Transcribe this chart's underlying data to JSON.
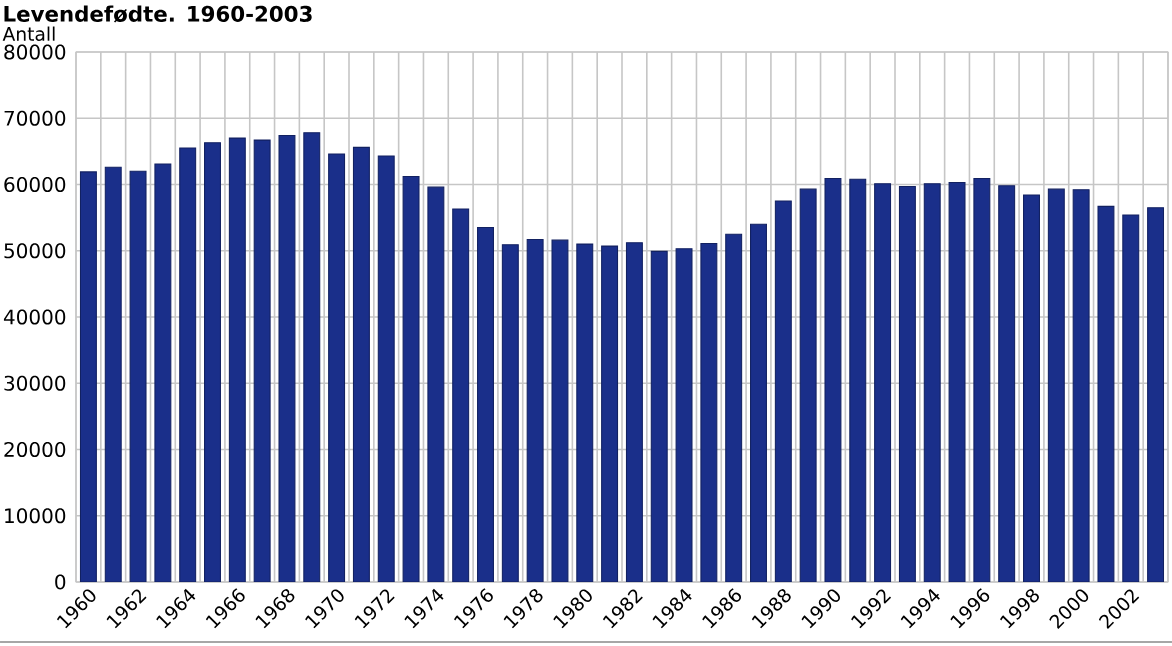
{
  "chart_data": {
    "type": "bar",
    "title": "Levendefødte. 1960-2003",
    "ylabel": "Antall",
    "categories": [
      "1960",
      null,
      "1962",
      null,
      "1964",
      null,
      "1966",
      null,
      "1968",
      null,
      "1970",
      null,
      "1972",
      null,
      "1974",
      null,
      "1976",
      null,
      "1978",
      null,
      "1980",
      null,
      "1982",
      null,
      "1984",
      null,
      "1986",
      null,
      "1988",
      null,
      "1990",
      null,
      "1992",
      null,
      "1994",
      null,
      "1996",
      null,
      "1998",
      null,
      "2000",
      null,
      "2002",
      null
    ],
    "values": [
      61900,
      62600,
      62000,
      63100,
      65500,
      66300,
      67000,
      66700,
      67400,
      67800,
      64600,
      65600,
      64300,
      61200,
      59600,
      56300,
      53500,
      50900,
      51700,
      51600,
      51000,
      50700,
      51200,
      49900,
      50300,
      51100,
      52500,
      54000,
      57500,
      59300,
      60900,
      60800,
      60100,
      59700,
      60100,
      60300,
      60900,
      59800,
      58400,
      59300,
      59200,
      56700,
      55400,
      56500
    ],
    "color": "#1a2f8a",
    "ylim": [
      0,
      80000
    ],
    "yticks": [
      0,
      10000,
      20000,
      30000,
      40000,
      50000,
      60000,
      70000,
      80000
    ],
    "grid": true
  }
}
